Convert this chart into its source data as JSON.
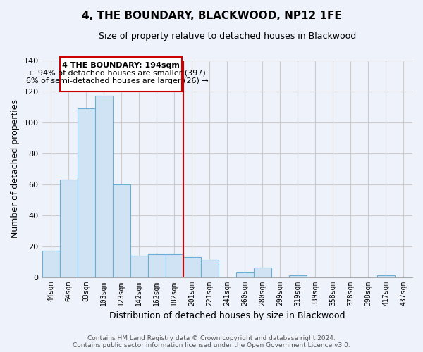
{
  "title": "4, THE BOUNDARY, BLACKWOOD, NP12 1FE",
  "subtitle": "Size of property relative to detached houses in Blackwood",
  "xlabel": "Distribution of detached houses by size in Blackwood",
  "ylabel": "Number of detached properties",
  "bar_labels": [
    "44sqm",
    "64sqm",
    "83sqm",
    "103sqm",
    "123sqm",
    "142sqm",
    "162sqm",
    "182sqm",
    "201sqm",
    "221sqm",
    "241sqm",
    "260sqm",
    "280sqm",
    "299sqm",
    "319sqm",
    "339sqm",
    "358sqm",
    "378sqm",
    "398sqm",
    "417sqm",
    "437sqm"
  ],
  "bar_values": [
    17,
    63,
    109,
    117,
    60,
    14,
    15,
    15,
    13,
    11,
    0,
    3,
    6,
    0,
    1,
    0,
    0,
    0,
    0,
    1,
    0
  ],
  "bar_color": "#d0e3f5",
  "bar_edge_color": "#6aaed6",
  "vline_color": "#cc0000",
  "ylim": [
    0,
    140
  ],
  "yticks": [
    0,
    20,
    40,
    60,
    80,
    100,
    120,
    140
  ],
  "annotation_title": "4 THE BOUNDARY: 194sqm",
  "annotation_line1": "← 94% of detached houses are smaller (397)",
  "annotation_line2": "6% of semi-detached houses are larger (26) →",
  "annotation_box_color": "#ffffff",
  "annotation_box_edge": "#cc0000",
  "footer_line1": "Contains HM Land Registry data © Crown copyright and database right 2024.",
  "footer_line2": "Contains public sector information licensed under the Open Government Licence v3.0.",
  "background_color": "#eef2fb",
  "grid_color": "#cccccc",
  "title_fontsize": 11,
  "subtitle_fontsize": 9
}
